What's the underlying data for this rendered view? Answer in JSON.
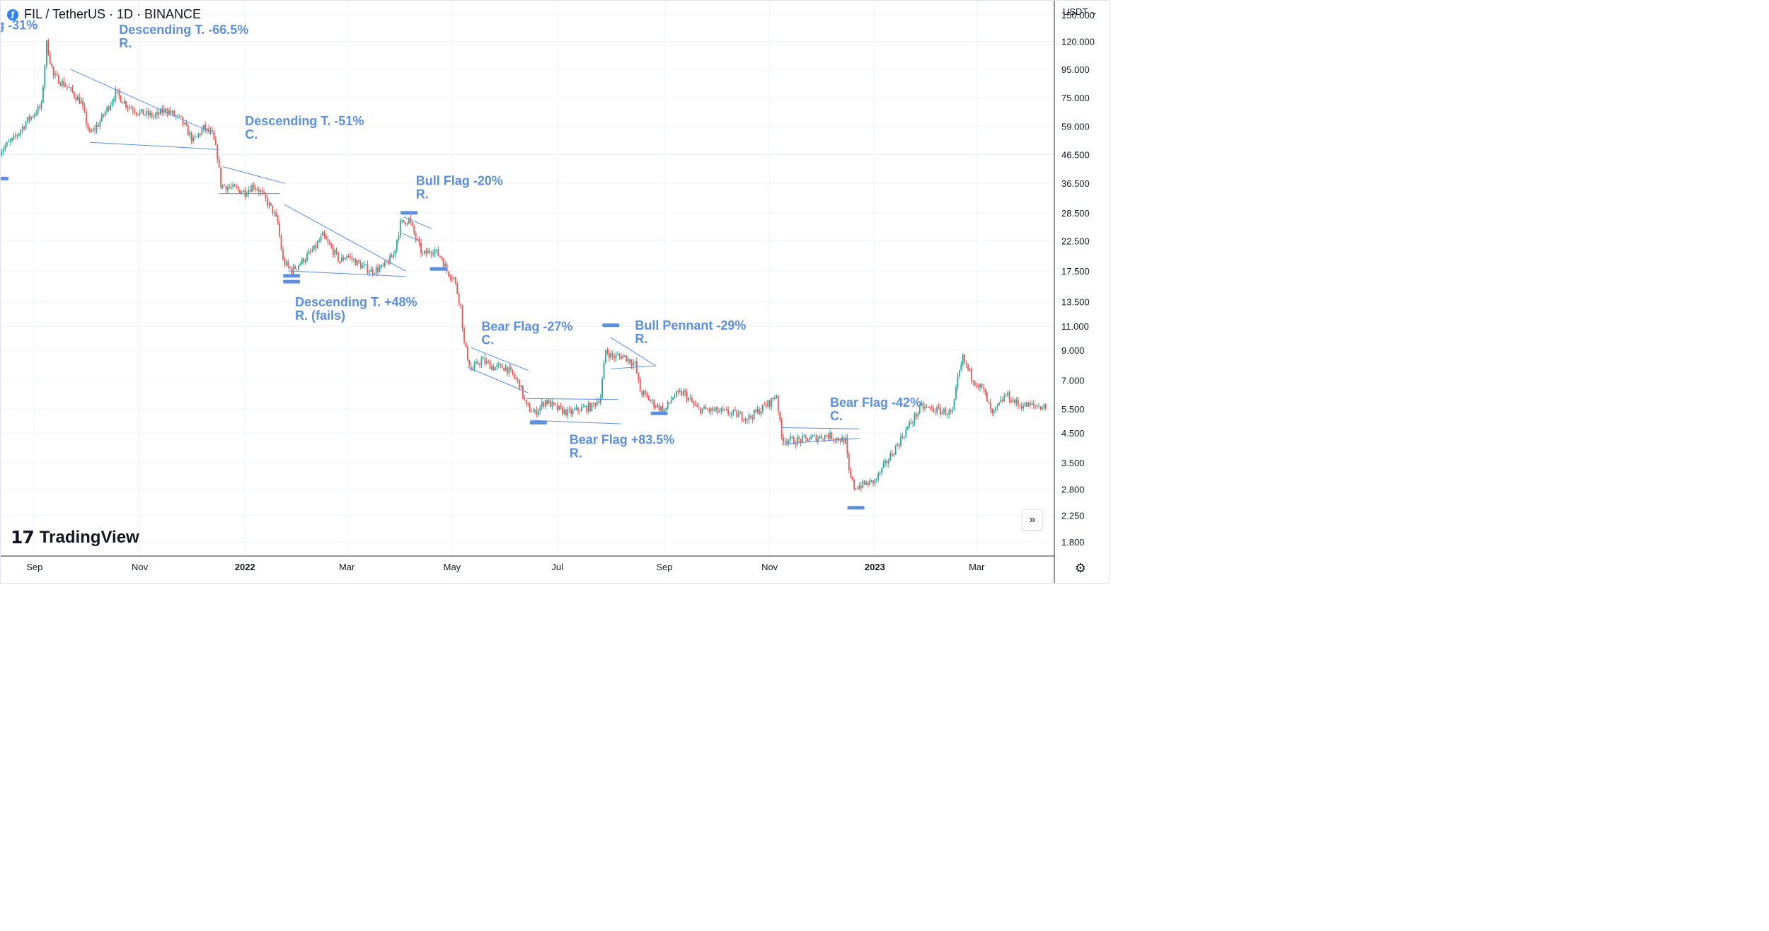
{
  "header": {
    "symbol_title": "FIL / TetherUS · 1D · BINANCE",
    "symbol_icon": "filecoin-icon"
  },
  "price_axis": {
    "currency_label": "USDT",
    "currency_icon": "chevron-down-icon"
  },
  "branding": {
    "logo_glyph": "17",
    "name": "TradingView"
  },
  "controls": {
    "scroll_glyph": "»",
    "settings_icon": "gear-icon"
  },
  "colors": {
    "up_candle": "#26a69a",
    "down_candle": "#ef5350",
    "annotation_text": "#5b8fe0",
    "trendline": "#5b8fe0",
    "grid": "#f0f3fa",
    "axis_text": "#131722"
  },
  "chart_data": {
    "type": "candlestick",
    "y_scale": "log",
    "ylim": [
      1.6,
      170
    ],
    "xlim": [
      "2021-08-12",
      "2023-04-15"
    ],
    "grid": true,
    "y_ticks": [
      "150.000",
      "120.000",
      "95.000",
      "75.000",
      "59.000",
      "46.500",
      "36.500",
      "28.500",
      "22.500",
      "17.500",
      "13.500",
      "11.000",
      "9.000",
      "7.000",
      "5.500",
      "4.500",
      "3.500",
      "2.800",
      "2.250",
      "1.800"
    ],
    "x_ticks": [
      {
        "date": "2021-09-01",
        "label": "Sep",
        "bold": false
      },
      {
        "date": "2021-11-01",
        "label": "Nov",
        "bold": false
      },
      {
        "date": "2022-01-01",
        "label": "2022",
        "bold": true
      },
      {
        "date": "2022-03-01",
        "label": "Mar",
        "bold": false
      },
      {
        "date": "2022-05-01",
        "label": "May",
        "bold": false
      },
      {
        "date": "2022-07-01",
        "label": "Jul",
        "bold": false
      },
      {
        "date": "2022-09-01",
        "label": "Sep",
        "bold": false
      },
      {
        "date": "2022-11-01",
        "label": "Nov",
        "bold": false
      },
      {
        "date": "2023-01-01",
        "label": "2023",
        "bold": true
      },
      {
        "date": "2023-03-01",
        "label": "Mar",
        "bold": false
      }
    ],
    "price_path": [
      [
        "2021-08-12",
        48
      ],
      [
        "2021-08-20",
        53
      ],
      [
        "2021-08-28",
        62
      ],
      [
        "2021-09-05",
        70
      ],
      [
        "2021-09-08",
        118
      ],
      [
        "2021-09-12",
        90
      ],
      [
        "2021-09-20",
        82
      ],
      [
        "2021-09-28",
        72
      ],
      [
        "2021-10-03",
        55
      ],
      [
        "2021-10-08",
        60
      ],
      [
        "2021-10-14",
        70
      ],
      [
        "2021-10-18",
        78
      ],
      [
        "2021-10-25",
        70
      ],
      [
        "2021-11-01",
        66
      ],
      [
        "2021-11-10",
        64
      ],
      [
        "2021-11-16",
        68
      ],
      [
        "2021-11-25",
        62
      ],
      [
        "2021-12-02",
        52
      ],
      [
        "2021-12-08",
        58
      ],
      [
        "2021-12-13",
        55
      ],
      [
        "2021-12-16",
        46
      ],
      [
        "2021-12-18",
        36
      ],
      [
        "2021-12-25",
        35
      ],
      [
        "2022-01-01",
        34
      ],
      [
        "2022-01-06",
        36
      ],
      [
        "2022-01-10",
        34
      ],
      [
        "2022-01-14",
        31
      ],
      [
        "2022-01-17",
        29
      ],
      [
        "2022-01-20",
        26
      ],
      [
        "2022-01-23",
        19
      ],
      [
        "2022-01-28",
        17.5
      ],
      [
        "2022-02-03",
        19
      ],
      [
        "2022-02-10",
        21
      ],
      [
        "2022-02-15",
        23.5
      ],
      [
        "2022-02-25",
        19
      ],
      [
        "2022-03-01",
        20
      ],
      [
        "2022-03-08",
        18.5
      ],
      [
        "2022-03-15",
        17.5
      ],
      [
        "2022-03-22",
        18
      ],
      [
        "2022-03-28",
        20
      ],
      [
        "2022-04-01",
        26
      ],
      [
        "2022-04-06",
        27
      ],
      [
        "2022-04-10",
        23
      ],
      [
        "2022-04-14",
        20
      ],
      [
        "2022-04-20",
        21
      ],
      [
        "2022-04-25",
        19.5
      ],
      [
        "2022-04-28",
        17.5
      ],
      [
        "2022-05-02",
        16.5
      ],
      [
        "2022-05-06",
        13
      ],
      [
        "2022-05-08",
        9.5
      ],
      [
        "2022-05-12",
        7.6
      ],
      [
        "2022-05-18",
        8.3
      ],
      [
        "2022-05-25",
        7.8
      ],
      [
        "2022-06-01",
        7.8
      ],
      [
        "2022-06-05",
        7.3
      ],
      [
        "2022-06-09",
        6.8
      ],
      [
        "2022-06-13",
        5.6
      ],
      [
        "2022-06-18",
        5.3
      ],
      [
        "2022-06-24",
        5.9
      ],
      [
        "2022-07-01",
        5.5
      ],
      [
        "2022-07-08",
        5.3
      ],
      [
        "2022-07-14",
        5.5
      ],
      [
        "2022-07-21",
        5.6
      ],
      [
        "2022-07-26",
        6.1
      ],
      [
        "2022-07-29",
        9
      ],
      [
        "2022-08-02",
        8.5
      ],
      [
        "2022-08-08",
        8.6
      ],
      [
        "2022-08-15",
        8
      ],
      [
        "2022-08-18",
        6.4
      ],
      [
        "2022-08-25",
        5.8
      ],
      [
        "2022-09-01",
        5.4
      ],
      [
        "2022-09-06",
        6.1
      ],
      [
        "2022-09-12",
        6.3
      ],
      [
        "2022-09-20",
        5.5
      ],
      [
        "2022-10-01",
        5.4
      ],
      [
        "2022-10-10",
        5.3
      ],
      [
        "2022-10-20",
        5.1
      ],
      [
        "2022-11-01",
        5.8
      ],
      [
        "2022-11-05",
        6.2
      ],
      [
        "2022-11-08",
        4.3
      ],
      [
        "2022-11-15",
        4.2
      ],
      [
        "2022-11-25",
        4.3
      ],
      [
        "2022-12-05",
        4.4
      ],
      [
        "2022-12-15",
        4.2
      ],
      [
        "2022-12-17",
        3.2
      ],
      [
        "2022-12-20",
        2.85
      ],
      [
        "2023-01-01",
        3.0
      ],
      [
        "2023-01-10",
        3.7
      ],
      [
        "2023-01-20",
        4.7
      ],
      [
        "2023-01-28",
        5.6
      ],
      [
        "2023-02-08",
        5.4
      ],
      [
        "2023-02-15",
        5.3
      ],
      [
        "2023-02-18",
        7.0
      ],
      [
        "2023-02-21",
        8.4
      ],
      [
        "2023-02-26",
        7.2
      ],
      [
        "2023-03-05",
        6.4
      ],
      [
        "2023-03-10",
        5.2
      ],
      [
        "2023-03-18",
        6.2
      ],
      [
        "2023-03-25",
        5.7
      ],
      [
        "2023-04-10",
        5.6
      ]
    ],
    "patterns": [
      {
        "label": "g -31%",
        "sub": "",
        "text_at": [
          "2021-08-10",
          133
        ],
        "lines": [],
        "markers": [
          [
            "2021-08-12",
            38
          ]
        ]
      },
      {
        "label": "Descending T. -66.5%",
        "sub": "R.",
        "text_at": [
          "2021-10-20",
          128
        ],
        "lines": [
          [
            [
              "2021-09-22",
              95
            ],
            [
              "2021-12-15",
              55
            ]
          ],
          [
            [
              "2021-10-03",
              51.5
            ],
            [
              "2021-12-17",
              48.5
            ]
          ]
        ],
        "markers": []
      },
      {
        "label": "Descending T. -51%",
        "sub": "C.",
        "text_at": [
          "2022-01-01",
          59.5
        ],
        "lines": [
          [
            [
              "2021-12-19",
              42
            ],
            [
              "2022-01-24",
              36.5
            ]
          ],
          [
            [
              "2021-12-17",
              33.5
            ],
            [
              "2022-01-21",
              33.5
            ]
          ]
        ],
        "markers": []
      },
      {
        "label": "Bull Flag -20%",
        "sub": "R.",
        "text_at": [
          "2022-04-10",
          36
        ],
        "lines": [
          [
            [
              "2022-04-03",
              27.5
            ],
            [
              "2022-04-19",
              25
            ]
          ],
          [
            [
              "2022-04-02",
              24
            ],
            [
              "2022-04-12",
              22.5
            ]
          ]
        ],
        "markers": [
          [
            "2022-04-06",
            28.5
          ],
          [
            "2022-04-23",
            17.8
          ]
        ]
      },
      {
        "label": "Descending T. +48%",
        "sub": "R. (fails)",
        "text_at": [
          "2022-01-30",
          13
        ],
        "lines": [
          [
            [
              "2022-01-24",
              30.5
            ],
            [
              "2022-04-04",
              17.5
            ]
          ],
          [
            [
              "2022-01-26",
              17.5
            ],
            [
              "2022-04-04",
              16.7
            ]
          ]
        ],
        "markers": [
          [
            "2022-01-28",
            16.8
          ],
          [
            "2022-01-28",
            16.0
          ]
        ]
      },
      {
        "label": "Bear Flag -27%",
        "sub": "C.",
        "text_at": [
          "2022-05-18",
          10.6
        ],
        "lines": [
          [
            [
              "2022-05-12",
              9.2
            ],
            [
              "2022-06-14",
              7.6
            ]
          ],
          [
            [
              "2022-05-10",
              7.8
            ],
            [
              "2022-06-14",
              6.3
            ]
          ]
        ],
        "markers": []
      },
      {
        "label": "Bull Pennant -29%",
        "sub": "R.",
        "text_at": [
          "2022-08-15",
          10.7
        ],
        "lines": [
          [
            [
              "2022-08-01",
              10
            ],
            [
              "2022-08-27",
              7.9
            ]
          ],
          [
            [
              "2022-08-01",
              7.7
            ],
            [
              "2022-08-27",
              7.9
            ]
          ]
        ],
        "markers": [
          [
            "2022-08-01",
            11.1
          ],
          [
            "2022-08-29",
            5.3
          ]
        ]
      },
      {
        "label": "Bear Flag +83.5%",
        "sub": "R.",
        "text_at": [
          "2022-07-08",
          4.1
        ],
        "lines": [
          [
            [
              "2022-06-13",
              6
            ],
            [
              "2022-08-05",
              5.95
            ]
          ],
          [
            [
              "2022-06-15",
              5.0
            ],
            [
              "2022-08-07",
              4.85
            ]
          ]
        ],
        "markers": [
          [
            "2022-06-20",
            4.9
          ]
        ]
      },
      {
        "label": "Bear Flag -42%",
        "sub": "C.",
        "text_at": [
          "2022-12-06",
          5.6
        ],
        "lines": [
          [
            [
              "2022-11-08",
              4.7
            ],
            [
              "2022-12-23",
              4.65
            ]
          ],
          [
            [
              "2022-11-08",
              4.1
            ],
            [
              "2022-12-23",
              4.3
            ]
          ]
        ],
        "markers": [
          [
            "2022-12-21",
            2.4
          ]
        ]
      }
    ]
  }
}
